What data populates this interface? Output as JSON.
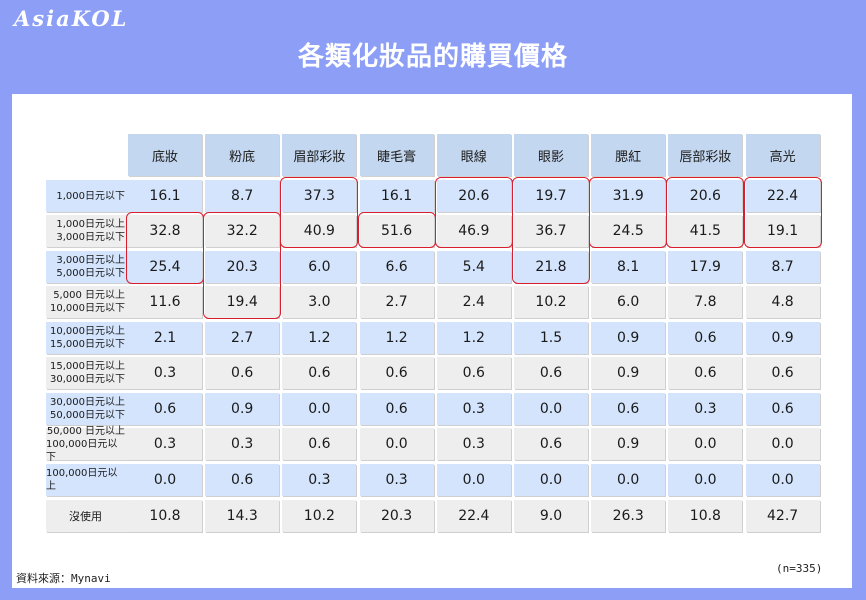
{
  "brand": {
    "logo_text": "AsiaKOL"
  },
  "slide": {
    "title": "各類化妝品的購買價格",
    "source": "資料來源：Mynavi",
    "sample_size": "(n=335)"
  },
  "colors": {
    "background": "#8c9ef5",
    "header_fill": "#c4d7f0",
    "row_blue": "#d3e4fc",
    "row_gray": "#eeeeee",
    "highlight": "#d81e2d"
  },
  "table": {
    "columns": [
      "底妝",
      "粉底",
      "眉部彩妝",
      "睫毛膏",
      "眼線",
      "眼影",
      "腮紅",
      "唇部彩妝",
      "高光"
    ],
    "rows": [
      {
        "label": [
          "1,000日元以下"
        ],
        "values": [
          "16.1",
          "8.7",
          "37.3",
          "16.1",
          "20.6",
          "19.7",
          "31.9",
          "20.6",
          "22.4"
        ]
      },
      {
        "label": [
          "1,000日元以上",
          "3,000日元以下"
        ],
        "values": [
          "32.8",
          "32.2",
          "40.9",
          "51.6",
          "46.9",
          "36.7",
          "24.5",
          "41.5",
          "19.1"
        ]
      },
      {
        "label": [
          "3,000日元以上",
          "5,000日元以下"
        ],
        "values": [
          "25.4",
          "20.3",
          "6.0",
          "6.6",
          "5.4",
          "21.8",
          "8.1",
          "17.9",
          "8.7"
        ]
      },
      {
        "label": [
          "5,000 日元以上",
          "10,000日元以下"
        ],
        "values": [
          "11.6",
          "19.4",
          "3.0",
          "2.7",
          "2.4",
          "10.2",
          "6.0",
          "7.8",
          "4.8"
        ]
      },
      {
        "label": [
          "10,000日元以上",
          "15,000日元以下"
        ],
        "values": [
          "2.1",
          "2.7",
          "1.2",
          "1.2",
          "1.2",
          "1.5",
          "0.9",
          "0.6",
          "0.9"
        ]
      },
      {
        "label": [
          "15,000日元以上",
          "30,000日元以下"
        ],
        "values": [
          "0.3",
          "0.6",
          "0.6",
          "0.6",
          "0.6",
          "0.6",
          "0.9",
          "0.6",
          "0.6"
        ]
      },
      {
        "label": [
          "30,000日元以上",
          "50,000日元以下"
        ],
        "values": [
          "0.6",
          "0.9",
          "0.0",
          "0.6",
          "0.3",
          "0.0",
          "0.6",
          "0.3",
          "0.6"
        ]
      },
      {
        "label": [
          "50,000 日元以上",
          "100,000日元以下"
        ],
        "values": [
          "0.3",
          "0.3",
          "0.6",
          "0.0",
          "0.3",
          "0.6",
          "0.9",
          "0.0",
          "0.0"
        ]
      },
      {
        "label": [
          "100,000日元以上"
        ],
        "values": [
          "0.0",
          "0.6",
          "0.3",
          "0.3",
          "0.0",
          "0.0",
          "0.0",
          "0.0",
          "0.0"
        ]
      },
      {
        "label": [
          "沒使用"
        ],
        "values": [
          "10.8",
          "14.3",
          "10.2",
          "20.3",
          "22.4",
          "9.0",
          "26.3",
          "10.8",
          "42.7"
        ]
      }
    ],
    "highlighted_ranges": [
      {
        "column": 0,
        "row_from": 1,
        "row_to": 2
      },
      {
        "column": 1,
        "row_from": 1,
        "row_to": 3
      },
      {
        "column": 2,
        "row_from": 0,
        "row_to": 1
      },
      {
        "column": 3,
        "row_from": 1,
        "row_to": 1
      },
      {
        "column": 4,
        "row_from": 0,
        "row_to": 1
      },
      {
        "column": 5,
        "row_from": 0,
        "row_to": 2
      },
      {
        "column": 6,
        "row_from": 0,
        "row_to": 1
      },
      {
        "column": 7,
        "row_from": 0,
        "row_to": 1
      },
      {
        "column": 8,
        "row_from": 0,
        "row_to": 1
      }
    ]
  }
}
